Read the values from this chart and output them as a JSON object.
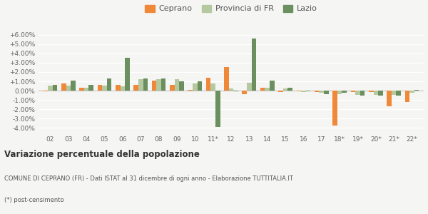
{
  "years": [
    "02",
    "03",
    "04",
    "05",
    "06",
    "07",
    "08",
    "09",
    "10",
    "11*",
    "12",
    "13",
    "14",
    "15",
    "16",
    "17",
    "18*",
    "19*",
    "20*",
    "21*",
    "22*"
  ],
  "ceprano": [
    -0.1,
    0.8,
    0.3,
    0.65,
    0.6,
    0.65,
    1.05,
    0.6,
    0.05,
    1.35,
    2.55,
    -0.35,
    0.3,
    -0.15,
    -0.1,
    -0.15,
    -3.7,
    -0.15,
    -0.15,
    -1.7,
    -1.25
  ],
  "provincia_fr": [
    0.55,
    0.55,
    0.35,
    0.55,
    0.45,
    1.2,
    1.2,
    1.2,
    0.8,
    0.75,
    0.2,
    0.85,
    0.3,
    0.2,
    -0.15,
    -0.2,
    -0.35,
    -0.45,
    -0.45,
    -0.45,
    -0.2
  ],
  "lazio": [
    0.6,
    1.1,
    0.6,
    1.3,
    3.5,
    1.3,
    1.3,
    1.0,
    1.0,
    -3.9,
    -0.1,
    5.55,
    1.05,
    0.35,
    -0.1,
    -0.35,
    -0.25,
    -0.5,
    -0.5,
    -0.55,
    0.05
  ],
  "color_ceprano": "#f0883a",
  "color_provincia": "#b5c9a0",
  "color_lazio": "#6b8f5e",
  "background": "#f5f5f3",
  "grid_color": "#ffffff",
  "ylim": [
    -4.5,
    6.5
  ],
  "yticks": [
    -4.0,
    -3.0,
    -2.0,
    -1.0,
    0.0,
    1.0,
    2.0,
    3.0,
    4.0,
    5.0,
    6.0
  ],
  "title": "Variazione percentuale della popolazione",
  "footer1": "COMUNE DI CEPRANO (FR) - Dati ISTAT al 31 dicembre di ogni anno - Elaborazione TUTTITALIA.IT",
  "footer2": "(*) post-censimento",
  "legend_labels": [
    "Ceprano",
    "Provincia di FR",
    "Lazio"
  ]
}
